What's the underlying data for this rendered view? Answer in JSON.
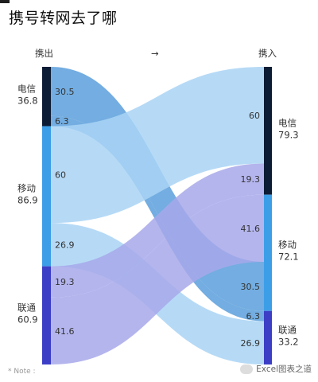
{
  "title": "携号转网去了哪",
  "note": "* Note :",
  "watermark": "Excel图表之道",
  "chart_data": {
    "type": "sankey",
    "left_header": "携出",
    "arrow": "→",
    "right_header": "携入",
    "sources": [
      {
        "name": "电信",
        "value": "36.8",
        "total": 36.8,
        "color": "#0d1c35"
      },
      {
        "name": "移动",
        "value": "86.9",
        "total": 86.9,
        "color": "#3d9ee8"
      },
      {
        "name": "联通",
        "value": "60.9",
        "total": 60.9,
        "color": "#3c3fc6"
      }
    ],
    "targets": [
      {
        "name": "电信",
        "value": "79.3",
        "total": 79.3,
        "color": "#0d1c35"
      },
      {
        "name": "移动",
        "value": "72.1",
        "total": 72.1,
        "color": "#3d9ee8"
      },
      {
        "name": "联通",
        "value": "33.2",
        "total": 33.2,
        "color": "#3c3fc6"
      }
    ],
    "flows": [
      {
        "source": "电信",
        "target": "移动",
        "value": 30.5,
        "label": "30.5",
        "color": "#5b9fdc"
      },
      {
        "source": "电信",
        "target": "联通",
        "value": 6.3,
        "label": "6.3",
        "color": "#5b9fdc"
      },
      {
        "source": "移动",
        "target": "电信",
        "value": 60,
        "label": "60",
        "color": "#a9d3f4"
      },
      {
        "source": "移动",
        "target": "联通",
        "value": 26.9,
        "label": "26.9",
        "color": "#a9d3f4"
      },
      {
        "source": "联通",
        "target": "电信",
        "value": 19.3,
        "label": "19.3",
        "color": "#a7a8ea"
      },
      {
        "source": "联通",
        "target": "移动",
        "value": 41.6,
        "label": "41.6",
        "color": "#a7a8ea"
      }
    ]
  }
}
